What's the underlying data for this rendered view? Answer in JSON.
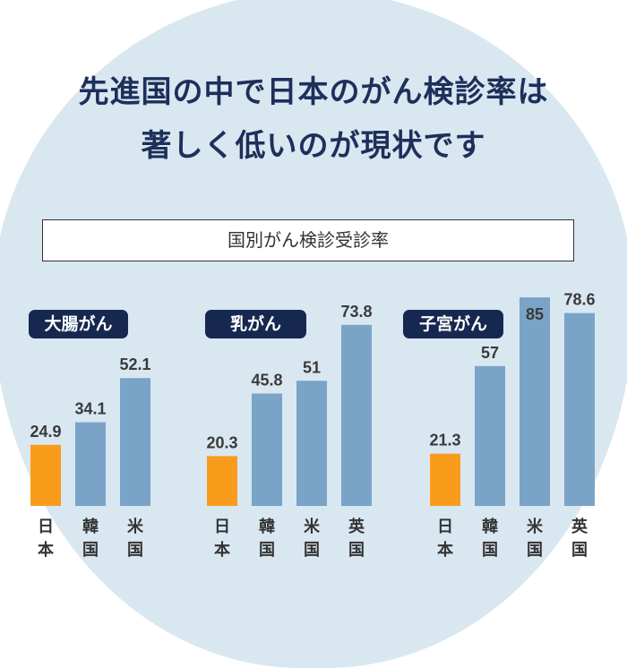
{
  "title_line1": "先進国の中で日本のがん検診率は",
  "title_line2": "著しく低いのが現状です",
  "subtitle": "国別がん検診受診率",
  "colors": {
    "japan": "#f99c1c",
    "other": "#7aa3c8",
    "background": "#d9e7f1",
    "navy": "#16284f"
  },
  "chart_data": [
    {
      "type": "bar",
      "title": "大腸がん",
      "categories": [
        "日本",
        "韓国",
        "米国"
      ],
      "values": [
        24.9,
        34.1,
        52.1
      ],
      "labels": [
        "24.9",
        "34.1",
        "52.1"
      ]
    },
    {
      "type": "bar",
      "title": "乳がん",
      "categories": [
        "日本",
        "韓国",
        "米国",
        "英国"
      ],
      "values": [
        20.3,
        45.8,
        51,
        73.8
      ],
      "labels": [
        "20.3",
        "45.8",
        "51",
        "73.8"
      ]
    },
    {
      "type": "bar",
      "title": "子宮がん",
      "categories": [
        "日本",
        "韓国",
        "米国",
        "英国"
      ],
      "values": [
        21.3,
        57,
        85,
        78.6
      ],
      "labels": [
        "21.3",
        "57",
        "85",
        "78.6"
      ]
    }
  ]
}
